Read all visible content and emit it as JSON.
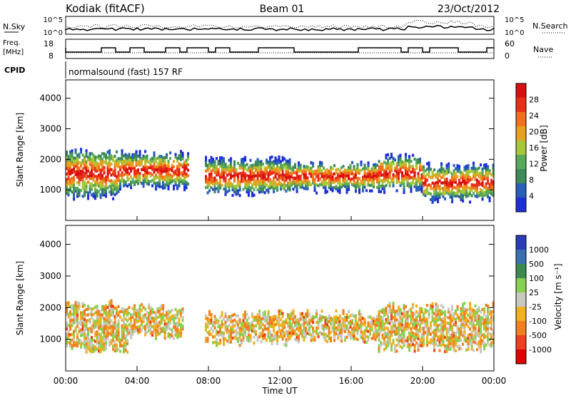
{
  "header": {
    "station": "Kodiak (fitACF)",
    "beam": "Beam 01",
    "date": "23/Oct/2012"
  },
  "noise_panel": {
    "left_label": "N.Sky",
    "right_label": "N.Search",
    "left_ticks": [
      "10^5",
      "10^0"
    ],
    "right_ticks": [
      "10^5",
      "10^0"
    ]
  },
  "freq_panel": {
    "left_label_line1": "Freq.",
    "left_label_line2": "[MHz]",
    "left_ticks": [
      "18",
      "8"
    ],
    "right_label": "Nave",
    "right_ticks": [
      "60",
      "0"
    ]
  },
  "cpid": {
    "label": "CPID",
    "value": "normalsound (fast) 157 RF"
  },
  "colors": {
    "power_scale": [
      "#1f2fd8",
      "#2a5fb8",
      "#3d8a5a",
      "#5aa85a",
      "#a8c838",
      "#e8a020",
      "#f07020",
      "#e83018",
      "#d81010"
    ],
    "velocity_scale": [
      "#2a3cb8",
      "#3a70b0",
      "#3c8a50",
      "#8ad050",
      "#c8c8c0",
      "#f0b020",
      "#f08020",
      "#ee4020",
      "#e00000"
    ]
  },
  "chart_data": [
    {
      "type": "heatmap",
      "panel": "power",
      "ylabel": "Slant Range [km]",
      "yticks": [
        "1000",
        "2000",
        "3000",
        "4000"
      ],
      "ylim": [
        0,
        4600
      ],
      "xlim": [
        0,
        24
      ],
      "xticks": [
        "00:00",
        "04:00",
        "08:00",
        "12:00",
        "16:00",
        "20:00",
        "00:00"
      ],
      "colorbar_label": "Power [dB]",
      "colorbar_ticks": [
        "28",
        "24",
        "20",
        "16",
        "12",
        "8",
        "4"
      ],
      "bands": [
        {
          "t0": 0.0,
          "t1": 3.0,
          "r0": 800,
          "r1": 2200
        },
        {
          "t0": 3.0,
          "t1": 6.8,
          "r0": 1100,
          "r1": 2100
        },
        {
          "t0": 7.8,
          "t1": 12.5,
          "r0": 900,
          "r1": 1900
        },
        {
          "t0": 12.5,
          "t1": 17.5,
          "r0": 1000,
          "r1": 1800
        },
        {
          "t0": 17.5,
          "t1": 20.0,
          "r0": 1000,
          "r1": 2000
        },
        {
          "t0": 20.0,
          "t1": 24.0,
          "r0": 700,
          "r1": 1700
        }
      ]
    },
    {
      "type": "heatmap",
      "panel": "velocity",
      "ylabel": "Slant Range [km]",
      "yticks": [
        "1000",
        "2000",
        "3000",
        "4000"
      ],
      "ylim": [
        0,
        4600
      ],
      "xlim": [
        0,
        24
      ],
      "xticks": [
        "00:00",
        "04:00",
        "08:00",
        "12:00",
        "16:00",
        "20:00",
        "00:00"
      ],
      "xlabel": "Time UT",
      "colorbar_label": "Velocity [m s⁻¹]",
      "colorbar_ticks": [
        "1000",
        "500",
        "100",
        "25",
        "-25",
        "-100",
        "-500",
        "-1000"
      ],
      "bands": [
        {
          "t0": 0.0,
          "t1": 3.5,
          "r0": 700,
          "r1": 2100
        },
        {
          "t0": 3.5,
          "t1": 6.5,
          "r0": 1100,
          "r1": 2000
        },
        {
          "t0": 7.8,
          "t1": 12.5,
          "r0": 900,
          "r1": 1800
        },
        {
          "t0": 12.5,
          "t1": 17.5,
          "r0": 1000,
          "r1": 1800
        },
        {
          "t0": 17.5,
          "t1": 24.0,
          "r0": 700,
          "r1": 2000
        }
      ]
    }
  ]
}
